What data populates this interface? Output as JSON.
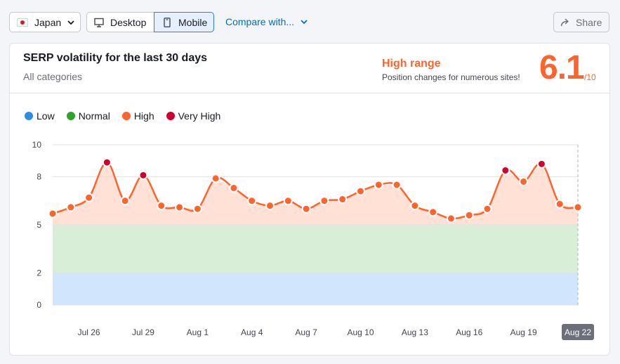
{
  "toolbar": {
    "country": "Japan",
    "device_desktop": "Desktop",
    "device_mobile": "Mobile",
    "compare": "Compare with...",
    "share": "Share"
  },
  "card": {
    "title": "SERP volatility for the last 30 days",
    "subtitle": "All categories",
    "range_title": "High range",
    "range_desc": "Position changes for numerous sites!",
    "score": "6.1",
    "score_max": "/10"
  },
  "legend": [
    {
      "label": "Low",
      "color": "#2b8fe3"
    },
    {
      "label": "Normal",
      "color": "#2fa42a"
    },
    {
      "label": "High",
      "color": "#ff642d"
    },
    {
      "label": "Very High",
      "color": "#d1002f"
    }
  ],
  "chart_data": {
    "type": "line",
    "y_ticks": [
      0,
      2,
      5,
      8,
      10
    ],
    "ylim": [
      0,
      10
    ],
    "x_tick_labels": [
      "Jul 26",
      "Jul 29",
      "Aug 1",
      "Aug 4",
      "Aug 7",
      "Aug 10",
      "Aug 13",
      "Aug 16",
      "Aug 19",
      "Aug 22"
    ],
    "x_tick_index": [
      2,
      5,
      8,
      11,
      14,
      17,
      20,
      23,
      26,
      29
    ],
    "highlight_label": "Aug 22",
    "bands": [
      {
        "name": "Low",
        "from": 0,
        "to": 2,
        "color": "#d1e6fc"
      },
      {
        "name": "Normal",
        "from": 2,
        "to": 5,
        "color": "#d8eed6"
      },
      {
        "name": "High",
        "from": 5,
        "to": 10,
        "color": "#ffe1d6"
      }
    ],
    "very_high_threshold": 8,
    "series": [
      {
        "values": [
          5.7,
          6.1,
          6.7,
          8.9,
          6.5,
          8.1,
          6.2,
          6.1,
          6.0,
          7.9,
          7.3,
          6.5,
          6.2,
          6.5,
          6.0,
          6.5,
          6.6,
          7.1,
          7.5,
          7.5,
          6.2,
          5.8,
          5.4,
          5.6,
          6.0,
          8.4,
          7.7,
          8.8,
          6.3,
          6.1
        ]
      }
    ]
  }
}
